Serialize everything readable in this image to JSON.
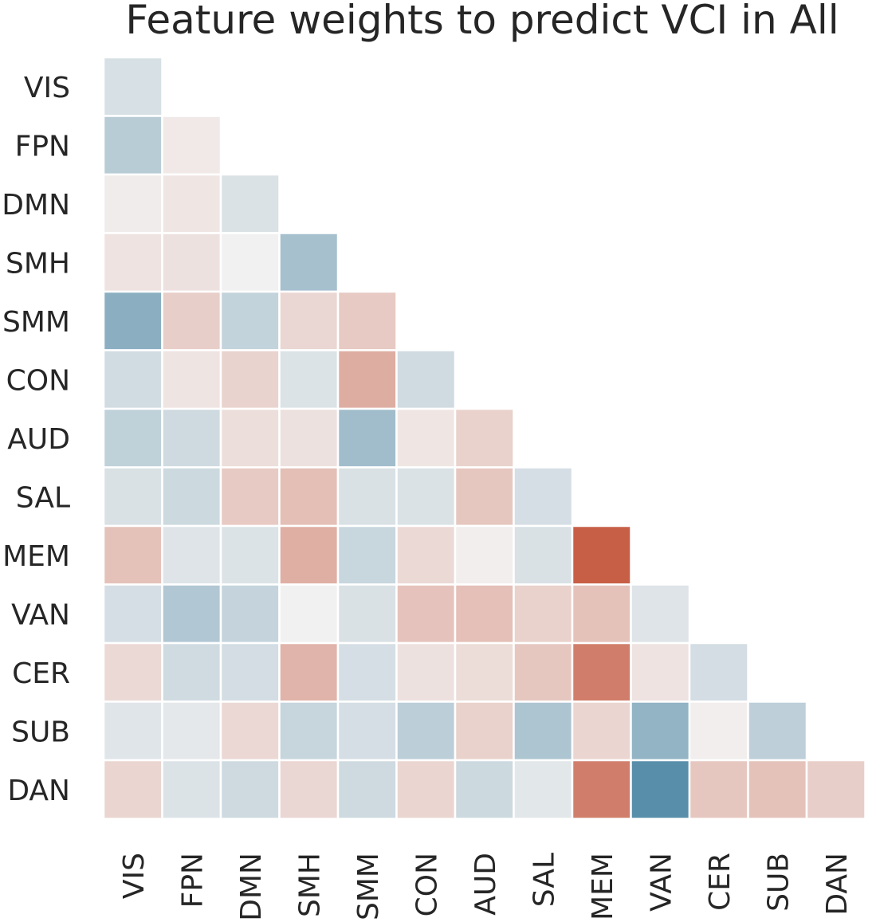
{
  "chart_data": {
    "type": "heatmap",
    "title": "Feature weights to predict VCI in All",
    "row_labels": [
      "VIS",
      "FPN",
      "DMN",
      "SMH",
      "SMM",
      "CON",
      "AUD",
      "SAL",
      "MEM",
      "VAN",
      "CER",
      "SUB",
      "DAN"
    ],
    "col_labels": [
      "VIS",
      "FPN",
      "DMN",
      "SMH",
      "SMM",
      "CON",
      "AUD",
      "SAL",
      "MEM",
      "VAN",
      "CER",
      "SUB",
      "DAN"
    ],
    "mask": "upper-triangle",
    "colormap": "diverging blue-white-red",
    "value_range": [
      -1,
      1
    ],
    "legend": "none",
    "values": [
      [
        -0.15
      ],
      [
        -0.32,
        0.05
      ],
      [
        0.03,
        0.07,
        -0.13
      ],
      [
        0.09,
        0.1,
        0.0,
        -0.42
      ],
      [
        -0.57,
        0.22,
        -0.26,
        0.17,
        0.25
      ],
      [
        -0.18,
        0.08,
        0.19,
        -0.12,
        0.43,
        -0.19
      ],
      [
        -0.28,
        -0.2,
        0.12,
        0.1,
        -0.45,
        0.07,
        0.2
      ],
      [
        -0.14,
        -0.21,
        0.25,
        0.32,
        -0.14,
        -0.13,
        0.27,
        -0.16
      ],
      [
        0.3,
        -0.11,
        -0.12,
        0.42,
        -0.23,
        0.15,
        0.02,
        -0.14,
        0.93
      ],
      [
        -0.16,
        -0.36,
        -0.25,
        0.0,
        -0.14,
        0.29,
        0.31,
        0.2,
        0.3,
        -0.11
      ],
      [
        0.15,
        -0.19,
        -0.17,
        0.39,
        -0.16,
        0.1,
        0.13,
        0.27,
        0.73,
        0.09,
        -0.17
      ],
      [
        -0.1,
        -0.08,
        0.16,
        -0.24,
        -0.16,
        -0.3,
        0.2,
        -0.38,
        0.18,
        -0.53,
        0.02,
        -0.29
      ],
      [
        0.18,
        -0.12,
        -0.2,
        0.17,
        -0.2,
        0.18,
        -0.21,
        -0.09,
        0.73,
        -0.85,
        0.27,
        0.3,
        0.22
      ]
    ]
  }
}
